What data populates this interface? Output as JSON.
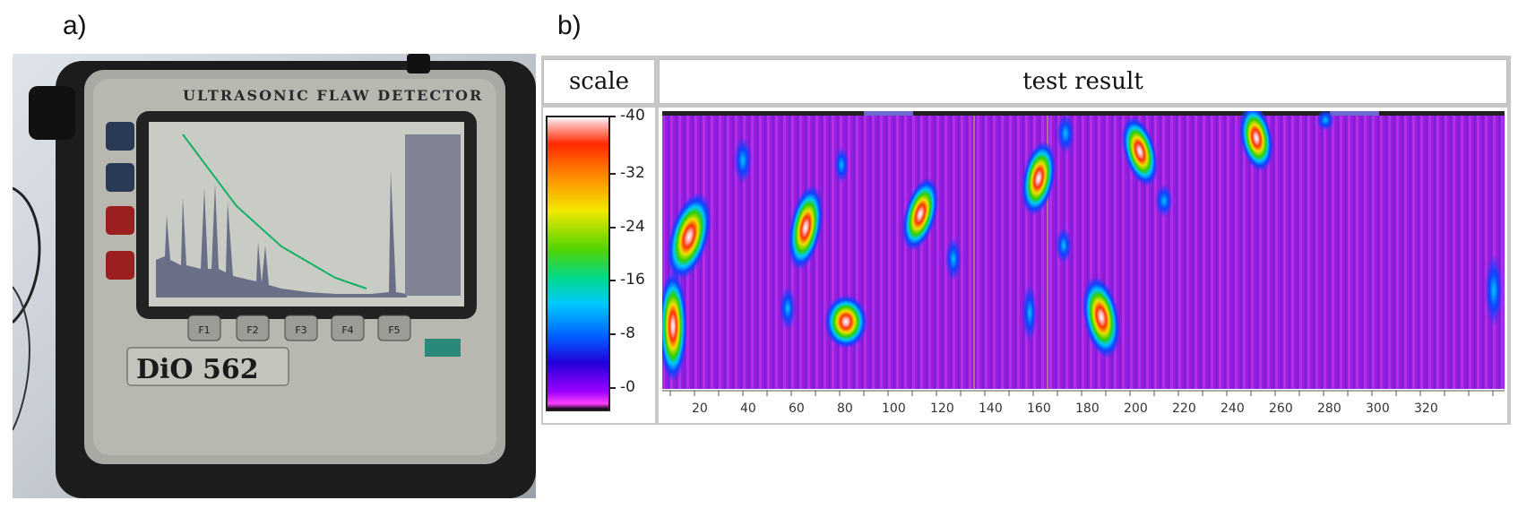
{
  "labels": {
    "a": "a)",
    "b": "b)"
  },
  "device": {
    "header": "ULTRASONIC FLAW DETECTOR",
    "model": "DiO 562",
    "fkeys": [
      "F1",
      "F2",
      "F3",
      "F4",
      "F5"
    ]
  },
  "result_panel": {
    "scale_header": "scale",
    "test_header": "test result",
    "scale_ticks": [
      "-40",
      "-32",
      "-24",
      "-16",
      "-8",
      "-0"
    ],
    "x_ticks": [
      "20",
      "40",
      "60",
      "80",
      "100",
      "120",
      "140",
      "160",
      "180",
      "200",
      "220",
      "240",
      "260",
      "280",
      "300",
      "320"
    ]
  },
  "colors": {
    "background": "#a020e0",
    "scale_stops": [
      "#ffffff",
      "#ff2a00",
      "#ff8a00",
      "#f2e800",
      "#52d400",
      "#00d98c",
      "#00c8ff",
      "#0060ff",
      "#2000d8",
      "#a000ff",
      "#ff40ff",
      "#000000"
    ]
  }
}
